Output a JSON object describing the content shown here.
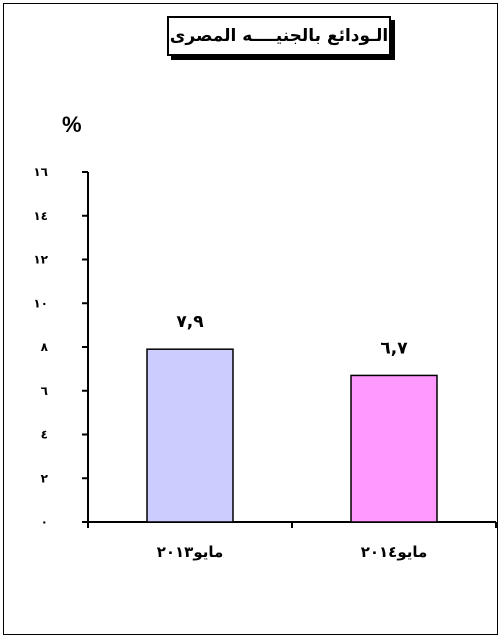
{
  "chart_data": {
    "type": "bar",
    "title": "الـودائع بالجنيــــه المصرى",
    "ylabel": "%",
    "xlabel": "",
    "categories": [
      "مايو٢٠١٣",
      "مايو٢٠١٤"
    ],
    "values": [
      7.9,
      6.7
    ],
    "data_labels": [
      "٧,٩",
      "٦,٧"
    ],
    "ylim": [
      0,
      16
    ],
    "y_ticks": [
      0,
      2,
      4,
      6,
      8,
      10,
      12,
      14,
      16
    ],
    "y_tick_labels": [
      "٠",
      "٢",
      "٤",
      "٦",
      "٨",
      "١٠",
      "١٢",
      "١٤",
      "١٦"
    ],
    "bar_colors": [
      "#ccccff",
      "#ff99ff"
    ],
    "grid": false,
    "legend": "none"
  }
}
